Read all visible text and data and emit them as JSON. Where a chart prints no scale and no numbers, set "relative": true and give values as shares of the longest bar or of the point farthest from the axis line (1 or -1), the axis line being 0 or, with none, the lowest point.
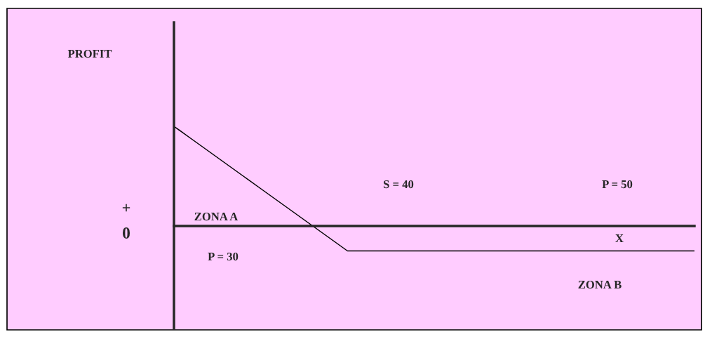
{
  "chart_data": {
    "type": "line",
    "relative": true,
    "categories": [
      null,
      null,
      null,
      null,
      null,
      null,
      null,
      null,
      null,
      null,
      null,
      null,
      null,
      null,
      null,
      null,
      null,
      null,
      null,
      null,
      null,
      null,
      null,
      null,
      null,
      null,
      null,
      null,
      null,
      null,
      null
    ],
    "values": [
      1,
      0.875,
      0.75,
      0.625,
      0.5,
      0.375,
      0.25,
      0.125,
      0,
      -0.125,
      -0.25,
      -0.25,
      -0.25,
      -0.25,
      -0.25,
      -0.25,
      -0.25,
      -0.25,
      -0.25,
      -0.25,
      -0.25,
      -0.25,
      -0.25,
      -0.25,
      -0.25,
      -0.25,
      -0.25,
      -0.25,
      -0.25,
      -0.25,
      -0.25
    ],
    "color": "#000000",
    "annotations": [
      "PROFIT",
      "+",
      "0",
      "ZONA A",
      "P = 30",
      "S = 40",
      "P = 50",
      "X",
      "ZONA B"
    ]
  }
}
